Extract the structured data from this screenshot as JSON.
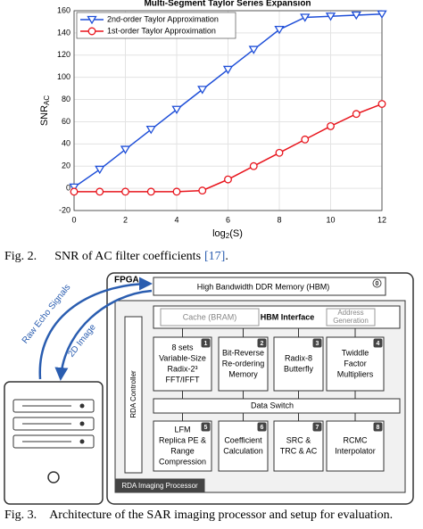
{
  "chart_data": {
    "type": "line",
    "title": "Multi-Segment Taylor Series Expansion",
    "xlabel": [
      "log",
      "2",
      "(S)"
    ],
    "ylabel": [
      "SNR",
      "AC"
    ],
    "x": [
      0,
      1,
      2,
      3,
      4,
      5,
      6,
      7,
      8,
      9,
      10,
      11,
      12
    ],
    "series": [
      {
        "name": "2nd-order Taylor Approximation",
        "color": "#1f4fd8",
        "marker": "triangle-down",
        "values": [
          1,
          17,
          35,
          53,
          71,
          89,
          107,
          125,
          143,
          154,
          155,
          156,
          157
        ]
      },
      {
        "name": "1st-order Taylor Approximation",
        "color": "#e8141c",
        "marker": "circle",
        "values": [
          -3,
          -3,
          -3,
          -3,
          -3,
          -2,
          8,
          20,
          32,
          44,
          56,
          67,
          76
        ]
      }
    ],
    "xlim": [
      0,
      12
    ],
    "xticks": [
      0,
      2,
      4,
      6,
      8,
      10,
      12
    ],
    "ylim": [
      -20,
      160
    ],
    "yticks": [
      -20,
      0,
      20,
      40,
      60,
      80,
      100,
      120,
      140,
      160
    ],
    "grid": true,
    "legend": "upper left"
  },
  "figure2_caption": {
    "label": "Fig. 2.",
    "text": "SNR of AC filter coefficients",
    "ref": "[17]",
    "end": "."
  },
  "figure3": {
    "fpga": "FPGA",
    "hbm": {
      "label": "High Bandwidth DDR Memory (HBM)",
      "badge": 0
    },
    "hbm_interface": {
      "label": "HBM Interface",
      "cache": "Cache (BRAM)",
      "address": [
        "Address",
        "Generation"
      ]
    },
    "controller": "RDA Controller",
    "data_switch": "Data Switch",
    "processor": "RDA Imaging Processor",
    "blocks": [
      {
        "badge": 1,
        "lines": [
          "8 sets",
          "Variable-Size",
          "Radix-2³",
          "FFT/IFFT"
        ]
      },
      {
        "badge": 2,
        "lines": [
          "Bit-Reverse",
          "Re-ordering",
          "Memory"
        ]
      },
      {
        "badge": 3,
        "lines": [
          "Radix-8",
          "Butterfly"
        ]
      },
      {
        "badge": 4,
        "lines": [
          "Twiddle",
          "Factor",
          "Multipliers"
        ]
      },
      {
        "badge": 5,
        "lines": [
          "LFM",
          "Replica PE &",
          "Range",
          "Compression"
        ]
      },
      {
        "badge": 6,
        "lines": [
          "Coefficient",
          "Calculation"
        ]
      },
      {
        "badge": 7,
        "lines": [
          "SRC &",
          "TRC & AC"
        ]
      },
      {
        "badge": 8,
        "lines": [
          "RCMC",
          "Interpolator"
        ]
      }
    ],
    "arrows": [
      "Raw Echo Signals",
      "2D Image"
    ],
    "caption": {
      "label": "Fig. 3.",
      "text": "Architecture of the SAR imaging processor and setup for evaluation."
    }
  }
}
